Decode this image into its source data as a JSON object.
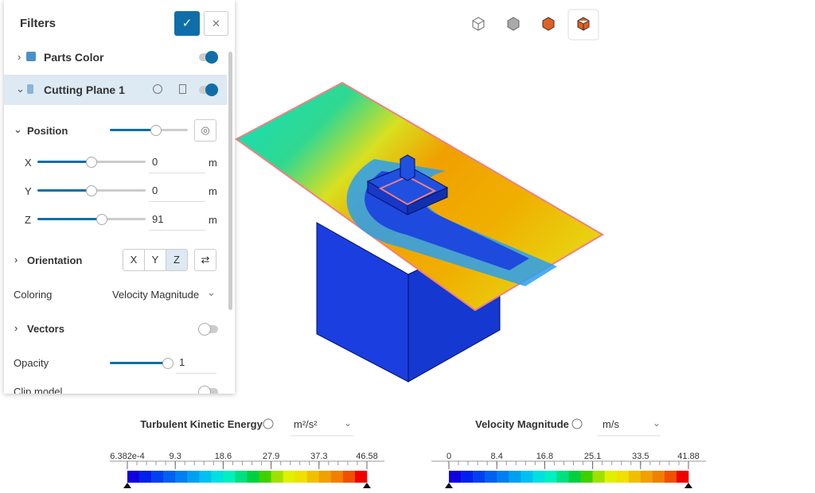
{
  "toolbar_count": 4,
  "filters": {
    "title": "Filters",
    "parts_color": "Parts Color",
    "cutting_plane": "Cutting Plane 1",
    "position": "Position",
    "x_label": "X",
    "x_value": "0",
    "y_label": "Y",
    "y_value": "0",
    "z_label": "Z",
    "z_value": "91",
    "unit": "m",
    "orientation": "Orientation",
    "orientation_buttons": [
      "X",
      "Y",
      "Z"
    ],
    "coloring_label": "Coloring",
    "coloring_value": "Velocity Magnitude",
    "vectors": "Vectors",
    "opacity": "Opacity",
    "opacity_value": "1",
    "clip_model": "Clip model"
  },
  "legends": [
    {
      "title": "Turbulent Kinetic Energy",
      "unit": "m²/s²",
      "ticks": [
        "6.382e-4",
        "9.3",
        "18.6",
        "27.9",
        "37.3",
        "46.58"
      ]
    },
    {
      "title": "Velocity Magnitude",
      "unit": "m/s",
      "ticks": [
        "0",
        "8.4",
        "16.8",
        "25.1",
        "33.5",
        "41.88"
      ]
    }
  ]
}
